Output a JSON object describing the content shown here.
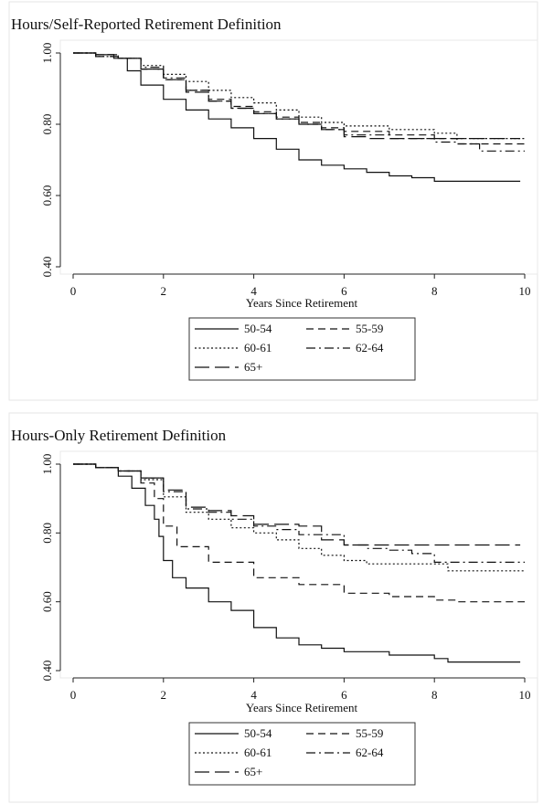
{
  "chart_data": [
    {
      "type": "line",
      "title": "Hours/Self-Reported Retirement Definition",
      "xlabel": "Years Since Retirement",
      "ylabel": "",
      "xlim": [
        0,
        10
      ],
      "ylim": [
        0.4,
        1.0
      ],
      "x_ticks": [
        "0",
        "2",
        "4",
        "6",
        "8",
        "10"
      ],
      "y_ticks": [
        "0.40",
        "0.60",
        "0.80",
        "1.00"
      ],
      "grid": false,
      "legend_position": "bottom",
      "series": [
        {
          "name": "50-54",
          "dash": "solid",
          "x": [
            0,
            0.5,
            0.9,
            1.2,
            1.5,
            2.0,
            2.5,
            3.0,
            3.5,
            4.0,
            4.5,
            5.0,
            5.5,
            6.0,
            6.5,
            7.0,
            7.5,
            8.0,
            9.9
          ],
          "y": [
            1.0,
            0.995,
            0.985,
            0.95,
            0.91,
            0.87,
            0.84,
            0.815,
            0.79,
            0.76,
            0.73,
            0.7,
            0.685,
            0.675,
            0.665,
            0.655,
            0.65,
            0.64,
            0.64
          ]
        },
        {
          "name": "55-59",
          "dash": "dash",
          "x": [
            0,
            0.5,
            1.0,
            1.5,
            2.0,
            2.5,
            3.0,
            3.5,
            4.0,
            4.5,
            5.0,
            5.5,
            6.0,
            7.0,
            8.0,
            8.5,
            10.0
          ],
          "y": [
            1.0,
            0.995,
            0.985,
            0.955,
            0.925,
            0.895,
            0.87,
            0.85,
            0.835,
            0.82,
            0.805,
            0.79,
            0.78,
            0.77,
            0.76,
            0.745,
            0.745
          ]
        },
        {
          "name": "60-61",
          "dash": "dot",
          "x": [
            0,
            0.5,
            1.0,
            1.5,
            2.0,
            2.5,
            3.0,
            3.5,
            4.0,
            4.5,
            5.0,
            5.5,
            6.0,
            7.0,
            8.0,
            8.5,
            10.0
          ],
          "y": [
            1.0,
            0.99,
            0.985,
            0.965,
            0.94,
            0.92,
            0.895,
            0.875,
            0.86,
            0.84,
            0.82,
            0.805,
            0.795,
            0.785,
            0.775,
            0.76,
            0.76
          ]
        },
        {
          "name": "62-64",
          "dash": "dashdot",
          "x": [
            0,
            0.5,
            1.0,
            1.5,
            2.0,
            2.5,
            3.0,
            3.5,
            4.0,
            4.5,
            5.0,
            5.5,
            6.0,
            7.0,
            8.0,
            8.5,
            9.0,
            10.0
          ],
          "y": [
            1.0,
            0.995,
            0.985,
            0.96,
            0.93,
            0.895,
            0.865,
            0.845,
            0.83,
            0.815,
            0.8,
            0.785,
            0.77,
            0.76,
            0.75,
            0.745,
            0.725,
            0.725
          ]
        },
        {
          "name": "65+",
          "dash": "longdash",
          "x": [
            0,
            0.5,
            1.0,
            1.5,
            2.0,
            2.5,
            3.0,
            3.5,
            4.0,
            4.5,
            5.0,
            5.5,
            6.0,
            6.5,
            7.0,
            8.0,
            9.9
          ],
          "y": [
            1.0,
            0.99,
            0.985,
            0.955,
            0.925,
            0.89,
            0.865,
            0.845,
            0.83,
            0.815,
            0.8,
            0.785,
            0.765,
            0.76,
            0.76,
            0.76,
            0.76
          ]
        }
      ]
    },
    {
      "type": "line",
      "title": "Hours-Only Retirement Definition",
      "xlabel": "Years Since Retirement",
      "ylabel": "",
      "xlim": [
        0,
        10
      ],
      "ylim": [
        0.4,
        1.0
      ],
      "x_ticks": [
        "0",
        "2",
        "4",
        "6",
        "8",
        "10"
      ],
      "y_ticks": [
        "0.40",
        "0.60",
        "0.80",
        "1.00"
      ],
      "grid": false,
      "legend_position": "bottom",
      "series": [
        {
          "name": "50-54",
          "dash": "solid",
          "x": [
            0,
            0.5,
            1.0,
            1.3,
            1.6,
            1.8,
            1.9,
            2.0,
            2.2,
            2.5,
            3.0,
            3.5,
            4.0,
            4.5,
            5.0,
            5.5,
            6.0,
            7.0,
            8.0,
            8.3,
            9.9
          ],
          "y": [
            1.0,
            0.99,
            0.965,
            0.93,
            0.88,
            0.84,
            0.79,
            0.72,
            0.67,
            0.64,
            0.6,
            0.575,
            0.525,
            0.495,
            0.475,
            0.465,
            0.455,
            0.445,
            0.435,
            0.425,
            0.425
          ]
        },
        {
          "name": "55-59",
          "dash": "dash",
          "x": [
            0,
            0.5,
            1.0,
            1.5,
            1.8,
            2.0,
            2.3,
            3.0,
            4.0,
            5.0,
            6.0,
            7.0,
            8.0,
            8.5,
            10.0
          ],
          "y": [
            1.0,
            0.99,
            0.98,
            0.945,
            0.9,
            0.82,
            0.76,
            0.715,
            0.67,
            0.65,
            0.625,
            0.615,
            0.605,
            0.6,
            0.6
          ]
        },
        {
          "name": "60-61",
          "dash": "dot",
          "x": [
            0,
            0.5,
            1.0,
            1.5,
            2.0,
            2.5,
            3.0,
            3.5,
            4.0,
            4.5,
            5.0,
            5.5,
            6.0,
            6.5,
            7.0,
            8.0,
            8.3,
            10.0
          ],
          "y": [
            1.0,
            0.99,
            0.98,
            0.955,
            0.905,
            0.86,
            0.84,
            0.815,
            0.8,
            0.78,
            0.755,
            0.735,
            0.72,
            0.71,
            0.71,
            0.71,
            0.69,
            0.69
          ]
        },
        {
          "name": "62-64",
          "dash": "dashdot",
          "x": [
            0,
            0.5,
            1.0,
            1.5,
            2.0,
            2.5,
            3.0,
            3.5,
            4.0,
            4.5,
            5.0,
            6.0,
            6.5,
            7.0,
            7.5,
            8.0,
            10.0
          ],
          "y": [
            1.0,
            0.99,
            0.98,
            0.96,
            0.92,
            0.87,
            0.86,
            0.84,
            0.82,
            0.81,
            0.795,
            0.765,
            0.755,
            0.75,
            0.74,
            0.715,
            0.715
          ]
        },
        {
          "name": "65+",
          "dash": "longdash",
          "x": [
            0,
            0.5,
            1.0,
            1.5,
            2.0,
            2.5,
            3.0,
            3.5,
            4.0,
            5.0,
            5.5,
            6.0,
            7.0,
            8.0,
            9.9
          ],
          "y": [
            1.0,
            0.99,
            0.98,
            0.96,
            0.925,
            0.875,
            0.865,
            0.85,
            0.825,
            0.82,
            0.78,
            0.765,
            0.765,
            0.765,
            0.765
          ]
        }
      ]
    }
  ]
}
